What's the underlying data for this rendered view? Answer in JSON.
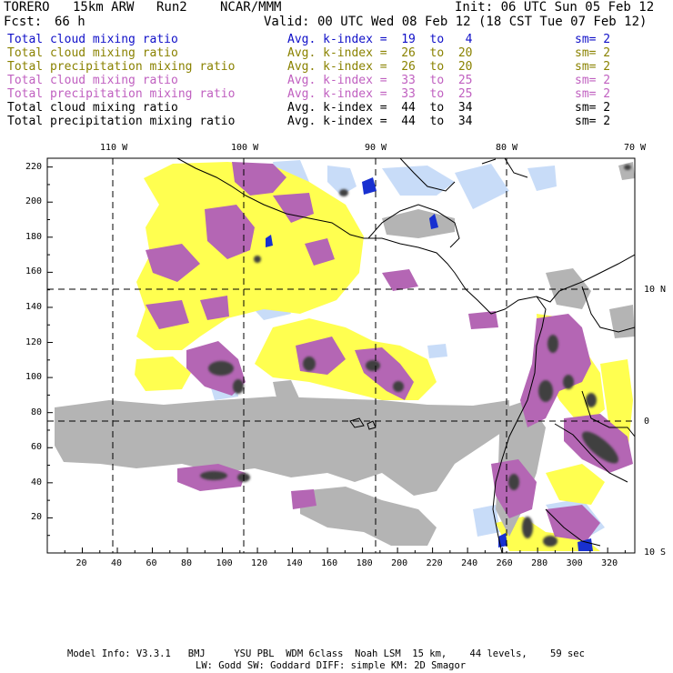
{
  "header": {
    "model": "TORERO",
    "resolution": "15km ARW",
    "run": "Run2",
    "center": "NCAR/MMM",
    "init": "Init: 06 UTC Sun 05 Feb 12",
    "fcst_label": "Fcst:",
    "fcst_value": "66 h",
    "valid": "Valid: 00 UTC Wed 08 Feb 12 (18 CST Tue 07 Feb 12)"
  },
  "fields": [
    {
      "name": "Total cloud mixing ratio",
      "kindex": "Avg. k-index =  19  to   4",
      "sm": "sm= 2",
      "color": "#1010c8"
    },
    {
      "name": "Total cloud mixing ratio",
      "kindex": "Avg. k-index =  26  to  20",
      "sm": "sm= 2",
      "color": "#8a8200"
    },
    {
      "name": "Total precipitation mixing ratio",
      "kindex": "Avg. k-index =  26  to  20",
      "sm": "sm= 2",
      "color": "#8a8200"
    },
    {
      "name": "Total cloud mixing ratio",
      "kindex": "Avg. k-index =  33  to  25",
      "sm": "sm= 2",
      "color": "#c060c0"
    },
    {
      "name": "Total precipitation mixing ratio",
      "kindex": "Avg. k-index =  33  to  25",
      "sm": "sm= 2",
      "color": "#c060c0"
    },
    {
      "name": "Total cloud mixing ratio",
      "kindex": "Avg. k-index =  44  to  34",
      "sm": "sm= 2",
      "color": "#000000"
    },
    {
      "name": "Total precipitation mixing ratio",
      "kindex": "Avg. k-index =  44  to  34",
      "sm": "sm= 2",
      "color": "#000000"
    }
  ],
  "map": {
    "lon_labels": [
      "110 W",
      "100 W",
      "90 W",
      "80 W",
      "70 W"
    ],
    "lat_labels": [
      "10 N",
      "0",
      "10 S"
    ],
    "x_ticks": [
      "20",
      "40",
      "60",
      "80",
      "100",
      "120",
      "140",
      "160",
      "180",
      "200",
      "220",
      "240",
      "260",
      "280",
      "300",
      "320"
    ],
    "y_ticks": [
      "20",
      "40",
      "60",
      "80",
      "100",
      "120",
      "140",
      "160",
      "180",
      "200",
      "220"
    ],
    "colors": {
      "cloud_blue": "#c8dcf8",
      "blue_core": "#1830d0",
      "yellow": "#ffff50",
      "purple": "#b466b4",
      "gray": "#b4b4b4",
      "dark_gray": "#404040",
      "grid": "#000000",
      "coast": "#000000"
    }
  },
  "footer": {
    "line1": "Model Info: V3.3.1   BMJ     YSU PBL  WDM 6class  Noah LSM  15 km,    44 levels,    59 sec",
    "line2": "LW: Godd SW: Goddard DIFF: simple KM: 2D Smagor"
  }
}
